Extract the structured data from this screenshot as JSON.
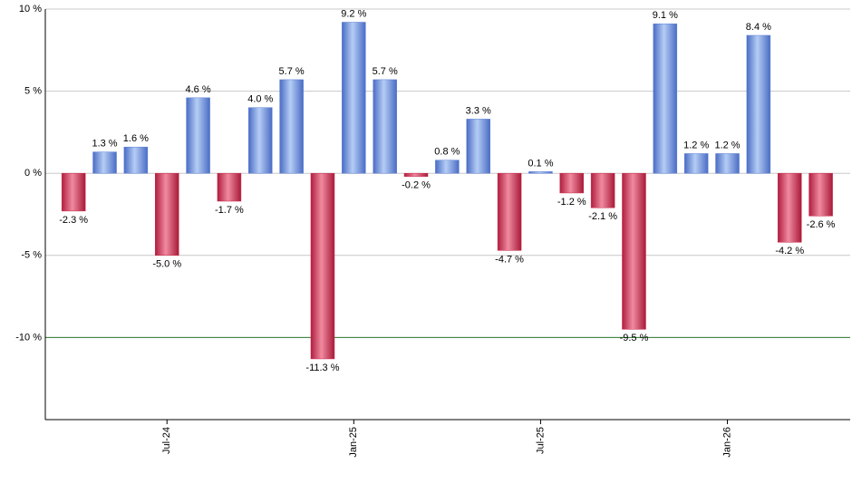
{
  "chart_data": {
    "type": "bar",
    "categories": [
      null,
      null,
      null,
      "Jul-24",
      null,
      null,
      null,
      null,
      null,
      "Jan-25",
      null,
      null,
      null,
      null,
      null,
      "Jul-25",
      null,
      null,
      null,
      null,
      null,
      "Jan-26",
      null,
      null,
      null
    ],
    "values": [
      -2.3,
      1.3,
      1.6,
      -5.0,
      4.6,
      -1.7,
      4.0,
      5.7,
      -11.3,
      9.2,
      5.7,
      -0.2,
      0.8,
      3.3,
      -4.7,
      0.1,
      -1.2,
      -2.1,
      -9.5,
      9.1,
      1.2,
      1.2,
      8.4,
      -4.2,
      -2.6
    ],
    "value_labels": [
      "-2.3 %",
      "1.3 %",
      "1.6 %",
      "-5.0 %",
      "4.6 %",
      "-1.7 %",
      "4.0 %",
      "5.7 %",
      "-11.3 %",
      "9.2 %",
      "5.7 %",
      "-0.2 %",
      "0.8 %",
      "3.3 %",
      "-4.7 %",
      "0.1 %",
      "-1.2 %",
      "-2.1 %",
      "-9.5 %",
      "9.1 %",
      "1.2 %",
      "1.2 %",
      "8.4 %",
      "-4.2 %",
      "-2.6 %"
    ],
    "positive_color": "#5b7fd6",
    "negative_color": "#c8284a",
    "ylim": [
      -15,
      10
    ],
    "yticks": [
      {
        "value": -10,
        "label": "-10 %"
      },
      {
        "value": -5,
        "label": "-5 %"
      },
      {
        "value": 0,
        "label": "0 %"
      },
      {
        "value": 5,
        "label": "5 %"
      },
      {
        "value": 10,
        "label": "10 %"
      }
    ],
    "grid": true,
    "reference_line": {
      "value": -10,
      "color": "#2e7d32"
    }
  }
}
